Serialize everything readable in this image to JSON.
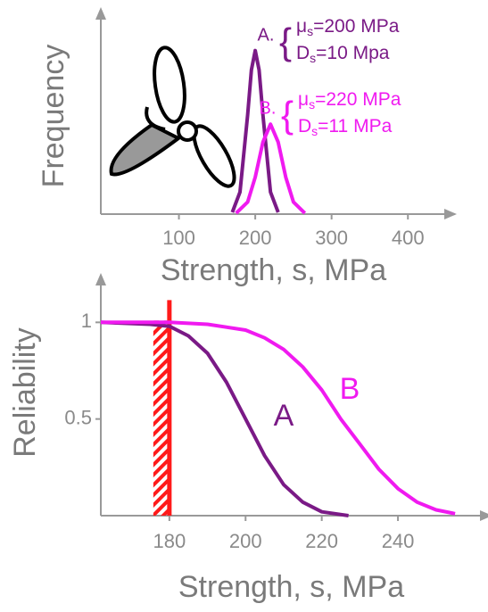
{
  "chart_data": [
    {
      "type": "line",
      "xlabel": "Strength, s, MPa",
      "ylabel": "Frequency",
      "xlim": [
        0,
        450
      ],
      "xticks": [
        100,
        200,
        300,
        400
      ],
      "ylim": [
        0,
        1.2
      ],
      "series": [
        {
          "name": "A.",
          "color": "#7a1a86",
          "x": [
            170,
            180,
            190,
            195,
            200,
            205,
            210,
            220,
            230
          ],
          "values": [
            0.011,
            0.135,
            0.607,
            0.882,
            1,
            0.882,
            0.607,
            0.135,
            0.011
          ],
          "params": [
            {
              "symbol": "μ",
              "sub": "s",
              "text": "=200 MPa"
            },
            {
              "symbol": "D",
              "sub": "s",
              "text": "=10 Mpa"
            }
          ]
        },
        {
          "name": "B.",
          "color": "#f01af0",
          "x": [
            175,
            190,
            200,
            210,
            220,
            230,
            240,
            250,
            265
          ],
          "values": [
            0.006,
            0.074,
            0.226,
            0.44,
            0.55,
            0.44,
            0.226,
            0.074,
            0.006
          ],
          "params": [
            {
              "symbol": "μ",
              "sub": "s",
              "text": "=220 MPa"
            },
            {
              "symbol": "D",
              "sub": "s",
              "text": "=11 MPa"
            }
          ]
        }
      ]
    },
    {
      "type": "line",
      "xlabel": "Strength, s, MPa",
      "ylabel": "Reliability",
      "xlim": [
        162,
        262
      ],
      "xticks": [
        180,
        200,
        220,
        240
      ],
      "ylim": [
        0,
        1.2
      ],
      "yticks": [
        1,
        0.5
      ],
      "threshold": 180,
      "threshold_color": "#ff1a1a",
      "series": [
        {
          "name": "A",
          "color": "#7a1a86",
          "x": [
            162,
            175,
            180,
            185,
            190,
            195,
            200,
            205,
            210,
            215,
            220,
            227
          ],
          "values": [
            1,
            0.99,
            0.98,
            0.93,
            0.84,
            0.69,
            0.5,
            0.31,
            0.16,
            0.07,
            0.02,
            0
          ]
        },
        {
          "name": "B",
          "color": "#f01af0",
          "x": [
            162,
            180,
            190,
            200,
            205,
            210,
            215,
            220,
            225,
            230,
            235,
            240,
            245,
            250,
            255
          ],
          "values": [
            1,
            1,
            0.99,
            0.96,
            0.92,
            0.86,
            0.77,
            0.65,
            0.5,
            0.37,
            0.24,
            0.14,
            0.07,
            0.03,
            0.01
          ]
        }
      ]
    }
  ]
}
